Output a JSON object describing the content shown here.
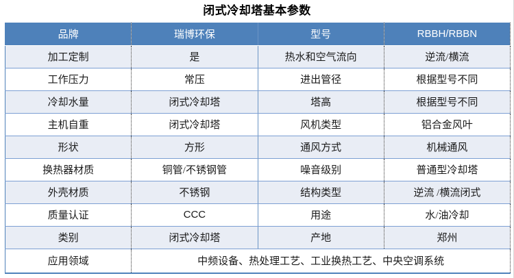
{
  "page": {
    "title": "闭式冷却塔基本参数"
  },
  "colors": {
    "header_bg": "#4E81BA",
    "header_text": "#FFFFFF",
    "alt_row_bg": "#E9EDF5",
    "row_bg": "#FFFFFF",
    "grid_line": "#7C9FD3",
    "solid_divider": "#6C95C5",
    "outer_border": "#4E81BA",
    "dotted_line": "#333333",
    "body_text": "#1A1A1A"
  },
  "chart_data": {
    "type": "table",
    "title": "闭式冷却塔基本参数",
    "columns": [
      "品牌",
      "瑞博环保",
      "型号",
      "RBBH/RBBN"
    ],
    "rows": [
      [
        "加工定制",
        "是",
        "热水和空气流向",
        "逆流/横流"
      ],
      [
        "工作压力",
        "常压",
        "进出管径",
        "根据型号不同"
      ],
      [
        "冷却水量",
        "闭式冷却塔",
        "塔高",
        "根据型号不同"
      ],
      [
        "主机自重",
        "闭式冷却塔",
        "风机类型",
        "铝合金风叶"
      ],
      [
        "形状",
        "方形",
        "通风方式",
        "机械通风"
      ],
      [
        "换热器材质",
        "铜管/不锈钢管",
        "噪音级别",
        "普通型冷却塔"
      ],
      [
        "外壳材质",
        "不锈钢",
        "结构类型",
        "逆流 /横流闭式"
      ],
      [
        "质量认证",
        "CCC",
        "用途",
        "水/油冷却"
      ],
      [
        "类别",
        "闭式冷却塔",
        "产地",
        "郑州"
      ],
      [
        "应用领域",
        "中频设备、热处理工艺、工业换热工艺、中央空调系统"
      ]
    ],
    "layout": {
      "last_row_value_colspan": 3,
      "grid": "on",
      "header_position": "top"
    }
  }
}
